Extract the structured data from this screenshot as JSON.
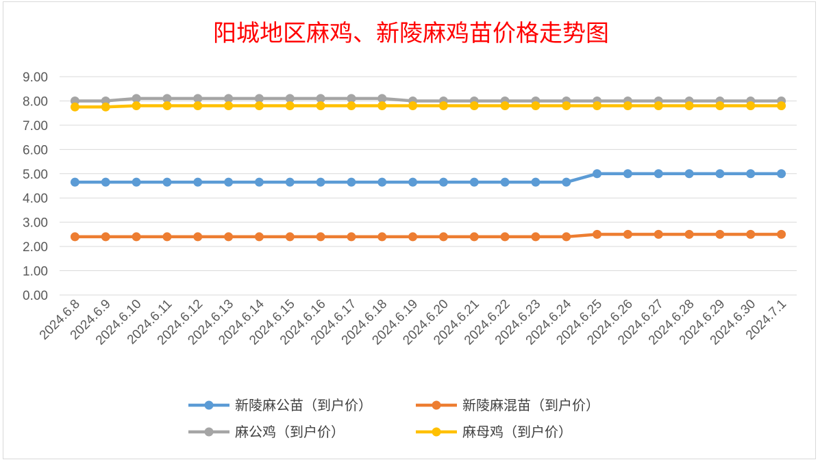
{
  "chart_data": {
    "type": "line",
    "title": "阳城地区麻鸡、新陵麻鸡苗价格走势图",
    "xlabel": "",
    "ylabel": "",
    "ylim": [
      0,
      9
    ],
    "yticks": [
      "0.00",
      "1.00",
      "2.00",
      "3.00",
      "4.00",
      "5.00",
      "6.00",
      "7.00",
      "8.00",
      "9.00"
    ],
    "grid": true,
    "legend_position": "bottom",
    "categories": [
      "2024.6.8",
      "2024.6.9",
      "2024.6.10",
      "2024.6.11",
      "2024.6.12",
      "2024.6.13",
      "2024.6.14",
      "2024.6.15",
      "2024.6.16",
      "2024.6.17",
      "2024.6.18",
      "2024.6.19",
      "2024.6.20",
      "2024.6.21",
      "2024.6.22",
      "2024.6.23",
      "2024.6.24",
      "2024.6.25",
      "2024.6.26",
      "2024.6.27",
      "2024.6.28",
      "2024.6.29",
      "2024.6.30",
      "2024.7.1"
    ],
    "series": [
      {
        "name": "新陵麻公苗（到户价）",
        "color": "#5b9bd5",
        "values": [
          4.65,
          4.65,
          4.65,
          4.65,
          4.65,
          4.65,
          4.65,
          4.65,
          4.65,
          4.65,
          4.65,
          4.65,
          4.65,
          4.65,
          4.65,
          4.65,
          4.65,
          5.0,
          5.0,
          5.0,
          5.0,
          5.0,
          5.0,
          5.0
        ]
      },
      {
        "name": "新陵麻混苗（到户价）",
        "color": "#ed7d31",
        "values": [
          2.4,
          2.4,
          2.4,
          2.4,
          2.4,
          2.4,
          2.4,
          2.4,
          2.4,
          2.4,
          2.4,
          2.4,
          2.4,
          2.4,
          2.4,
          2.4,
          2.4,
          2.5,
          2.5,
          2.5,
          2.5,
          2.5,
          2.5,
          2.5
        ]
      },
      {
        "name": "麻公鸡（到户价）",
        "color": "#a5a5a5",
        "values": [
          8.0,
          8.0,
          8.1,
          8.1,
          8.1,
          8.1,
          8.1,
          8.1,
          8.1,
          8.1,
          8.1,
          8.0,
          8.0,
          8.0,
          8.0,
          8.0,
          8.0,
          8.0,
          8.0,
          8.0,
          8.0,
          8.0,
          8.0,
          8.0
        ]
      },
      {
        "name": "麻母鸡（到户价）",
        "color": "#ffc000",
        "values": [
          7.75,
          7.75,
          7.8,
          7.8,
          7.8,
          7.8,
          7.8,
          7.8,
          7.8,
          7.8,
          7.8,
          7.8,
          7.8,
          7.8,
          7.8,
          7.8,
          7.8,
          7.8,
          7.8,
          7.8,
          7.8,
          7.8,
          7.8,
          7.8
        ]
      }
    ]
  }
}
